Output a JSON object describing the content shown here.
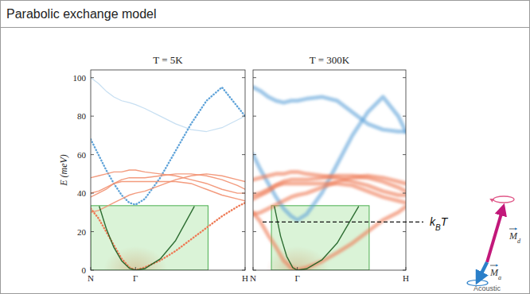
{
  "title": "Parabolic exchange model",
  "chart_data": [
    {
      "type": "line",
      "title": "T = 5K",
      "ylabel": "E (meV)",
      "xlim": [
        0,
        1
      ],
      "ylim": [
        0,
        104
      ],
      "xticks": [
        {
          "value": 0,
          "label": "N"
        },
        {
          "value": 0.29,
          "label": "Γ"
        },
        {
          "value": 1,
          "label": "H"
        }
      ],
      "yticks": [
        0,
        20,
        40,
        60,
        80,
        100
      ],
      "x": [
        0,
        0.05,
        0.1,
        0.15,
        0.2,
        0.25,
        0.29,
        0.35,
        0.45,
        0.55,
        0.65,
        0.75,
        0.85,
        0.95,
        1
      ],
      "fit_region": {
        "x": [
          0,
          0.76
        ],
        "y": [
          0,
          33.5
        ]
      },
      "series": [
        {
          "color": "#8fbfe6",
          "line_style": "faint",
          "values": [
            100,
            97,
            93,
            90,
            88,
            87,
            86,
            84,
            80,
            76,
            73,
            72,
            74,
            78,
            80
          ]
        },
        {
          "color": "#5fa3d9",
          "line_style": "dotted",
          "values": [
            68,
            60,
            52,
            45,
            39,
            35,
            34,
            37,
            48,
            62,
            76,
            88,
            95,
            85,
            80
          ]
        },
        {
          "color": "#f29070",
          "line_style": "solid",
          "values": [
            30,
            31,
            33,
            35,
            37,
            39,
            40,
            41,
            44,
            47,
            49,
            50,
            49,
            47,
            46
          ]
        },
        {
          "color": "#f29070",
          "line_style": "solid",
          "values": [
            38,
            40,
            42,
            45,
            47,
            48,
            48,
            48,
            49,
            50,
            50,
            49,
            47,
            44,
            42
          ]
        },
        {
          "color": "#f29070",
          "line_style": "solid",
          "values": [
            48,
            49,
            50,
            51,
            51,
            52,
            52,
            51,
            50,
            49,
            47,
            45,
            42,
            40,
            40
          ]
        },
        {
          "color": "#f29070",
          "line_style": "solid",
          "values": [
            40,
            41,
            43,
            45,
            46,
            46,
            46,
            46,
            46,
            46,
            45,
            42,
            39,
            37,
            36
          ]
        },
        {
          "color": "#ee7a55",
          "line_style": "dotted",
          "values": [
            32,
            27,
            20,
            13,
            6,
            1.5,
            0,
            1.5,
            5,
            10,
            16,
            22,
            28,
            33,
            35
          ]
        },
        {
          "color": "#1b5e20",
          "line_style": "solid",
          "x": [
            0.056,
            0.1,
            0.15,
            0.2,
            0.25,
            0.29,
            0.35,
            0.45,
            0.55,
            0.67
          ],
          "values": [
            33,
            21.8,
            11.8,
            4.9,
            1,
            0,
            0.8,
            5.8,
            15.4,
            33
          ]
        }
      ]
    },
    {
      "type": "line",
      "title": "T = 300K",
      "tick_labels": "x",
      "xlim": [
        0,
        1
      ],
      "ylim": [
        0,
        104
      ],
      "xticks": [
        {
          "value": 0,
          "label": "N"
        },
        {
          "value": 0.29,
          "label": "Γ"
        },
        {
          "value": 1,
          "label": "H"
        }
      ],
      "yticks": [
        0,
        20,
        40,
        60,
        80,
        100
      ],
      "x": [
        0,
        0.05,
        0.1,
        0.15,
        0.2,
        0.25,
        0.29,
        0.35,
        0.45,
        0.55,
        0.65,
        0.75,
        0.85,
        0.95,
        1
      ],
      "fit_region": {
        "x": [
          0.12,
          0.76
        ],
        "y": [
          0,
          33.5
        ]
      },
      "annotation": {
        "label_parts": [
          "k",
          "B",
          "T"
        ],
        "value": 25
      },
      "series": [
        {
          "color": "#5fa3d9",
          "line_style": "broad",
          "values": [
            95,
            93,
            90,
            88,
            87,
            88,
            88,
            89,
            90,
            88,
            82,
            76,
            73,
            72,
            72
          ]
        },
        {
          "color": "#5fa3d9",
          "line_style": "broad",
          "values": [
            60,
            52,
            45,
            38,
            32,
            28,
            26,
            29,
            40,
            55,
            70,
            82,
            90,
            80,
            72
          ]
        },
        {
          "color": "#ee7a55",
          "line_style": "broad",
          "values": [
            29,
            30,
            32,
            34,
            36,
            38,
            39,
            40,
            43,
            46,
            48,
            49,
            48,
            46,
            45
          ]
        },
        {
          "color": "#ee7a55",
          "line_style": "broad",
          "values": [
            37,
            39,
            41,
            44,
            46,
            47,
            47,
            47,
            48,
            49,
            49,
            48,
            46,
            43,
            41
          ]
        },
        {
          "color": "#ee7a55",
          "line_style": "broad",
          "values": [
            47,
            48,
            49,
            50,
            50,
            51,
            51,
            50,
            49,
            48,
            46,
            44,
            41,
            39,
            39
          ]
        },
        {
          "color": "#ee7a55",
          "line_style": "broad",
          "values": [
            39,
            40,
            42,
            44,
            45,
            45,
            45,
            45,
            45,
            45,
            44,
            41,
            38,
            36,
            35
          ]
        },
        {
          "color": "#ee7a55",
          "line_style": "broad",
          "values": [
            30,
            25,
            18,
            12,
            5,
            1.3,
            0,
            1.3,
            4.5,
            9,
            14,
            20,
            26,
            30,
            33
          ]
        },
        {
          "color": "#1b5e20",
          "line_style": "solid",
          "x": [
            0.14,
            0.18,
            0.22,
            0.26,
            0.29,
            0.35,
            0.45,
            0.55,
            0.69
          ],
          "values": [
            33,
            17.7,
            7.2,
            1.3,
            0,
            0.7,
            5.3,
            14,
            33
          ]
        }
      ]
    }
  ],
  "diagram": {
    "vectors": [
      {
        "label": [
          "M",
          "d"
        ]
      },
      {
        "label": [
          "M",
          "a"
        ]
      }
    ],
    "caption": "Acoustic"
  }
}
